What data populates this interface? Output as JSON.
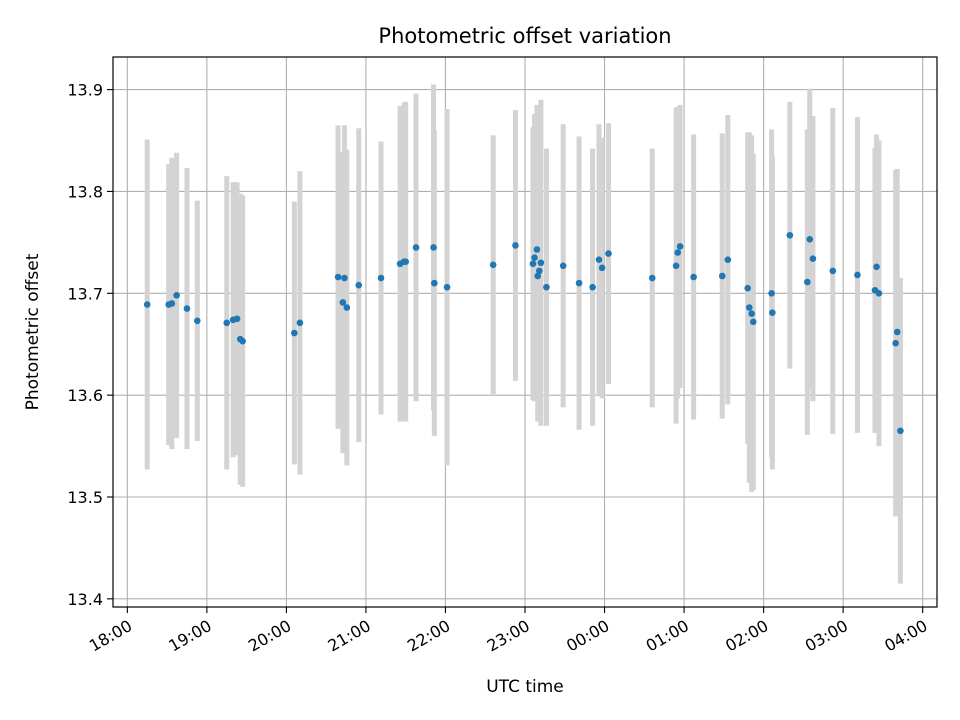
{
  "chart_data": {
    "type": "scatter",
    "title": "Photometric offset variation",
    "xlabel": "UTC time",
    "ylabel": "Photometric offset",
    "grid": true,
    "xlim": [
      -0.18,
      10.18
    ],
    "ylim": [
      13.392,
      13.932
    ],
    "x_ticks": [
      0,
      1,
      2,
      3,
      4,
      5,
      6,
      7,
      8,
      9,
      10
    ],
    "x_tick_labels": [
      "18:00",
      "19:00",
      "20:00",
      "21:00",
      "22:00",
      "23:00",
      "00:00",
      "01:00",
      "02:00",
      "03:00",
      "04:00"
    ],
    "y_ticks": [
      13.4,
      13.5,
      13.6,
      13.7,
      13.8,
      13.9
    ],
    "y_tick_labels": [
      "13.4",
      "13.5",
      "13.6",
      "13.7",
      "13.8",
      "13.9"
    ],
    "colors": {
      "point": "#1f77b4",
      "errorbar": "#d3d3d3",
      "grid": "#b0b0b0"
    },
    "series": [
      {
        "x_hours_since_1800": [
          0.25,
          0.52,
          0.56,
          0.62,
          0.75,
          0.88,
          1.25,
          1.33,
          1.38,
          1.42,
          1.45,
          2.1,
          2.17,
          2.65,
          2.71,
          2.73,
          2.76,
          2.91,
          3.19,
          3.43,
          3.48,
          3.5,
          3.63,
          3.85,
          3.86,
          4.02,
          4.6,
          4.88,
          5.1,
          5.12,
          5.15,
          5.16,
          5.18,
          5.2,
          5.27,
          5.48,
          5.68,
          5.85,
          5.93,
          5.97,
          6.05,
          6.6,
          6.9,
          6.92,
          6.95,
          7.12,
          7.48,
          7.55,
          7.8,
          7.82,
          7.85,
          7.87,
          8.1,
          8.11,
          8.33,
          8.55,
          8.58,
          8.62,
          8.87,
          9.18,
          9.4,
          9.42,
          9.45,
          9.66,
          9.68,
          9.72
        ],
        "y": [
          13.689,
          13.689,
          13.69,
          13.698,
          13.685,
          13.673,
          13.671,
          13.674,
          13.675,
          13.655,
          13.653,
          13.661,
          13.671,
          13.716,
          13.691,
          13.715,
          13.686,
          13.708,
          13.715,
          13.729,
          13.731,
          13.731,
          13.745,
          13.745,
          13.71,
          13.706,
          13.728,
          13.747,
          13.729,
          13.735,
          13.743,
          13.717,
          13.722,
          13.73,
          13.706,
          13.727,
          13.71,
          13.706,
          13.733,
          13.725,
          13.739,
          13.715,
          13.727,
          13.74,
          13.746,
          13.716,
          13.717,
          13.733,
          13.705,
          13.686,
          13.68,
          13.672,
          13.7,
          13.681,
          13.757,
          13.711,
          13.753,
          13.734,
          13.722,
          13.718,
          13.703,
          13.726,
          13.7,
          13.651,
          13.662,
          13.565
        ],
        "err": [
          0.162,
          0.138,
          0.143,
          0.14,
          0.138,
          0.118,
          0.144,
          0.135,
          0.134,
          0.143,
          0.143,
          0.129,
          0.149,
          0.149,
          0.148,
          0.15,
          0.155,
          0.154,
          0.134,
          0.155,
          0.156,
          0.157,
          0.151,
          0.16,
          0.15,
          0.175,
          0.127,
          0.133,
          0.134,
          0.141,
          0.142,
          0.143,
          0.145,
          0.16,
          0.136,
          0.139,
          0.144,
          0.136,
          0.133,
          0.128,
          0.128,
          0.127,
          0.155,
          0.143,
          0.139,
          0.14,
          0.14,
          0.142,
          0.153,
          0.172,
          0.175,
          0.165,
          0.161,
          0.154,
          0.131,
          0.15,
          0.148,
          0.14,
          0.16,
          0.155,
          0.14,
          0.13,
          0.15,
          0.17,
          0.16,
          0.15
        ]
      }
    ]
  }
}
